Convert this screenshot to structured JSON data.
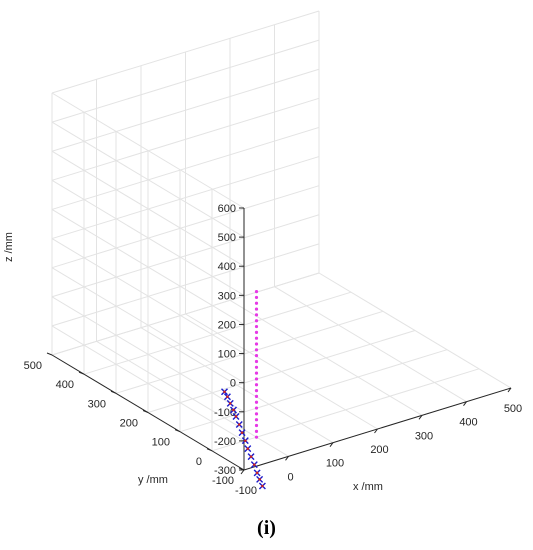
{
  "chart_data": {
    "type": "scatter3d",
    "xlabel": "x /mm",
    "ylabel": "y /mm",
    "zlabel": "z /mm",
    "xlim": [
      -100,
      500
    ],
    "ylim": [
      -100,
      500
    ],
    "zlim": [
      -300,
      600
    ],
    "xticks": [
      "-100",
      "0",
      "100",
      "200",
      "300",
      "400",
      "500"
    ],
    "yticks": [
      "-100",
      "0",
      "100",
      "200",
      "300",
      "400",
      "500"
    ],
    "zticks": [
      "-300",
      "-200",
      "-100",
      "0",
      "100",
      "200",
      "300",
      "400",
      "500",
      "600"
    ],
    "grid": true,
    "series": [
      {
        "marker": "dot",
        "color": "#e639e6",
        "x": [
          0,
          0,
          0,
          0,
          0,
          0,
          0,
          0,
          0,
          0,
          0,
          0,
          0,
          0,
          0,
          0,
          0,
          0,
          0,
          0,
          0,
          0,
          0,
          0,
          0,
          0
        ],
        "y": [
          0,
          0,
          0,
          0,
          0,
          0,
          0,
          0,
          0,
          0,
          0,
          0,
          0,
          0,
          0,
          0,
          0,
          0,
          0,
          0,
          0,
          0,
          0,
          0,
          0,
          0
        ],
        "z": [
          200,
          180,
          160,
          140,
          120,
          100,
          80,
          60,
          40,
          20,
          0,
          -20,
          -40,
          -60,
          -80,
          -100,
          -120,
          -140,
          -160,
          -180,
          -200,
          -220,
          -240,
          -260,
          -280,
          -300
        ]
      },
      {
        "marker": "x",
        "color": "#1a1acc",
        "x": [
          0,
          3,
          5,
          8,
          10,
          13,
          15,
          18,
          20,
          23,
          26,
          28,
          30,
          32
        ],
        "y": [
          100,
          95,
          89,
          83,
          78,
          72,
          66,
          60,
          55,
          49,
          43,
          37,
          32,
          26
        ],
        "z": [
          -210,
          -225,
          -245,
          -265,
          -285,
          -310,
          -335,
          -360,
          -385,
          -410,
          -435,
          -460,
          -480,
          -500
        ]
      },
      {
        "marker": "dot",
        "color": "#cc2222",
        "x": [
          0,
          3,
          5,
          8,
          10,
          13,
          15,
          18,
          20,
          23,
          26,
          28,
          30,
          32
        ],
        "y": [
          100,
          95,
          89,
          83,
          78,
          72,
          66,
          60,
          55,
          49,
          43,
          37,
          32,
          26
        ],
        "z": [
          -210,
          -225,
          -245,
          -265,
          -285,
          -310,
          -335,
          -360,
          -385,
          -410,
          -435,
          -460,
          -480,
          -500
        ]
      }
    ]
  },
  "panel_label": "(i)"
}
